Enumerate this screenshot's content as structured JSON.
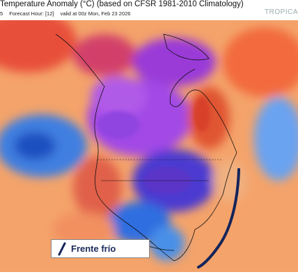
{
  "header": {
    "title": "Temperature Anomaly (°C) (based on CFSR 1981-2010 Climatology)",
    "run": "5",
    "forecast": "Forecast Hour: [12]",
    "valid": "valid at 00z Mon, Feb 23 2026",
    "brand": "TROPICA"
  },
  "legend": {
    "label": "Frente frío"
  }
}
